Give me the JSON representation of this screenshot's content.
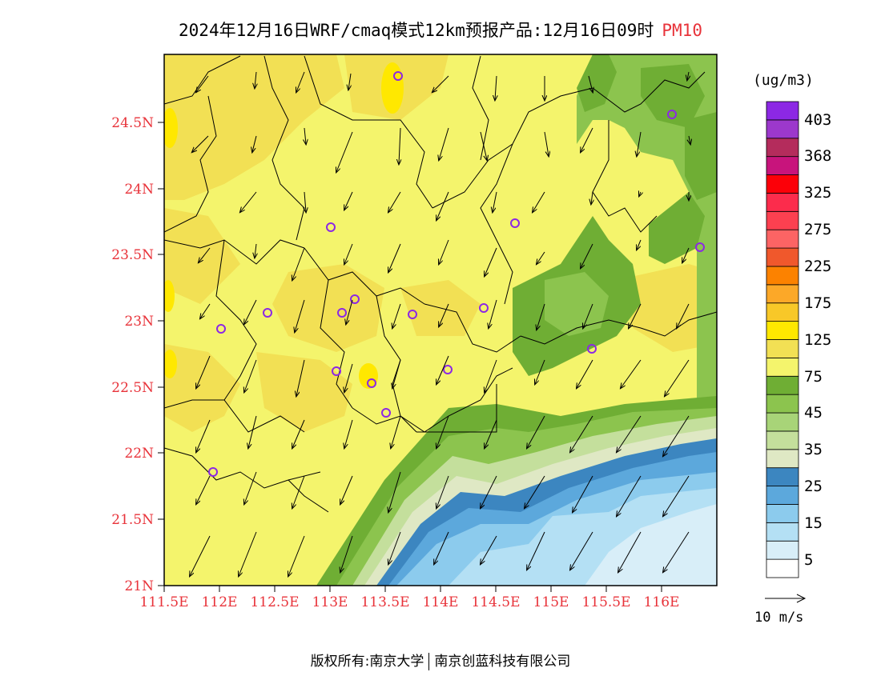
{
  "title": {
    "main": "2024年12月16日WRF/cmaq模式12km预报产品:12月16日09时",
    "variable": "PM10"
  },
  "colorbar": {
    "unit": "(ug/m3)",
    "colors": [
      "#ffffff",
      "#d8eef8",
      "#b4e0f4",
      "#8ccbed",
      "#5ca8dc",
      "#3c86c0",
      "#dfe8c4",
      "#c4df9c",
      "#a8d478",
      "#8cc44e",
      "#6fae34",
      "#f4f46c",
      "#f2e054",
      "#ffe800",
      "#f8c828",
      "#fca828",
      "#fc8200",
      "#f0582c",
      "#fc6464",
      "#fc4050",
      "#fc2c4c",
      "#fc0008",
      "#c8147c",
      "#b42c5c",
      "#9c38cc",
      "#8c28e4"
    ],
    "labels": [
      "5",
      "15",
      "25",
      "35",
      "45",
      "75",
      "125",
      "175",
      "225",
      "275",
      "325",
      "368",
      "403"
    ]
  },
  "axes": {
    "lat_labels": [
      "24.5N",
      "24N",
      "23.5N",
      "23N",
      "22.5N",
      "22N",
      "21.5N",
      "21N"
    ],
    "lon_labels": [
      "111.5E",
      "112E",
      "112.5E",
      "113E",
      "113.5E",
      "114E",
      "114.5E",
      "115E",
      "115.5E",
      "116E"
    ]
  },
  "reference_vector": {
    "label": "10 m/s"
  },
  "copyright": {
    "prefix": "版权所有:",
    "org1": "南京大学",
    "org2": "南京创蓝科技有限公司"
  },
  "legend_colors": {
    "label": "#e8333a",
    "yellow": "#f4f46c",
    "darker_yellow": "#f2e054",
    "bright_yellow": "#ffe800",
    "green_dark": "#6fae34",
    "green": "#8cc44e",
    "sea_light": "#d8eef8",
    "sea_blue": "#8ccbed",
    "station": "#8c28e4"
  }
}
